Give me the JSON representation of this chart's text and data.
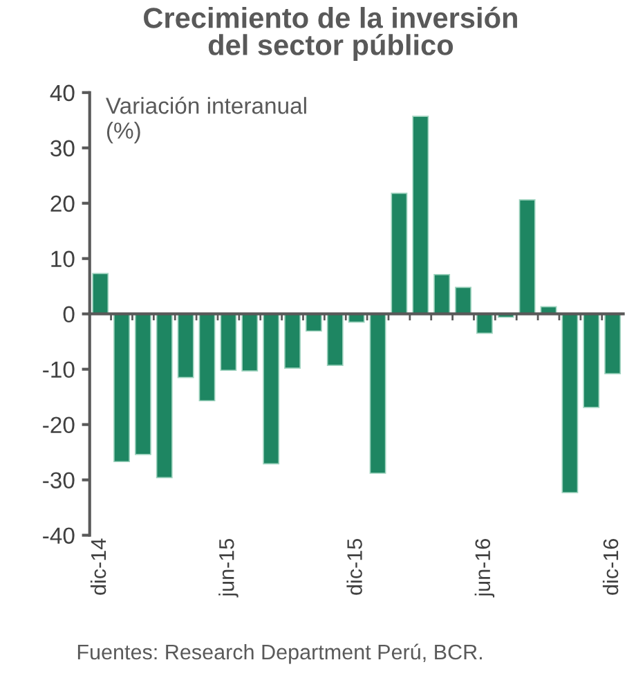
{
  "chart_data": {
    "type": "bar",
    "title": "Crecimiento de la inversión\ndel sector público",
    "ylabel": "Variación interanual\n(%)",
    "categories": [
      "dic-14",
      null,
      null,
      null,
      null,
      null,
      "jun-15",
      null,
      null,
      null,
      null,
      null,
      "dic-15",
      null,
      null,
      null,
      null,
      null,
      "jun-16",
      null,
      null,
      null,
      null,
      null,
      "dic-16"
    ],
    "values": [
      7.3,
      -26.7,
      -25.4,
      -29.6,
      -11.5,
      -15.7,
      -10.2,
      -10.3,
      -27.1,
      -9.8,
      -3.1,
      -9.3,
      -1.5,
      -28.8,
      21.8,
      35.7,
      7.1,
      4.8,
      -3.5,
      -0.6,
      20.6,
      1.3,
      -32.3,
      -16.9,
      -10.8
    ],
    "color": "#1e8662",
    "ylim": [
      -40,
      40
    ],
    "yticks": [
      -40,
      -30,
      -20,
      -10,
      0,
      10,
      20,
      30,
      40
    ],
    "legend": false,
    "annotations": [
      "Fuentes: Research Department Perú, BCR."
    ]
  }
}
